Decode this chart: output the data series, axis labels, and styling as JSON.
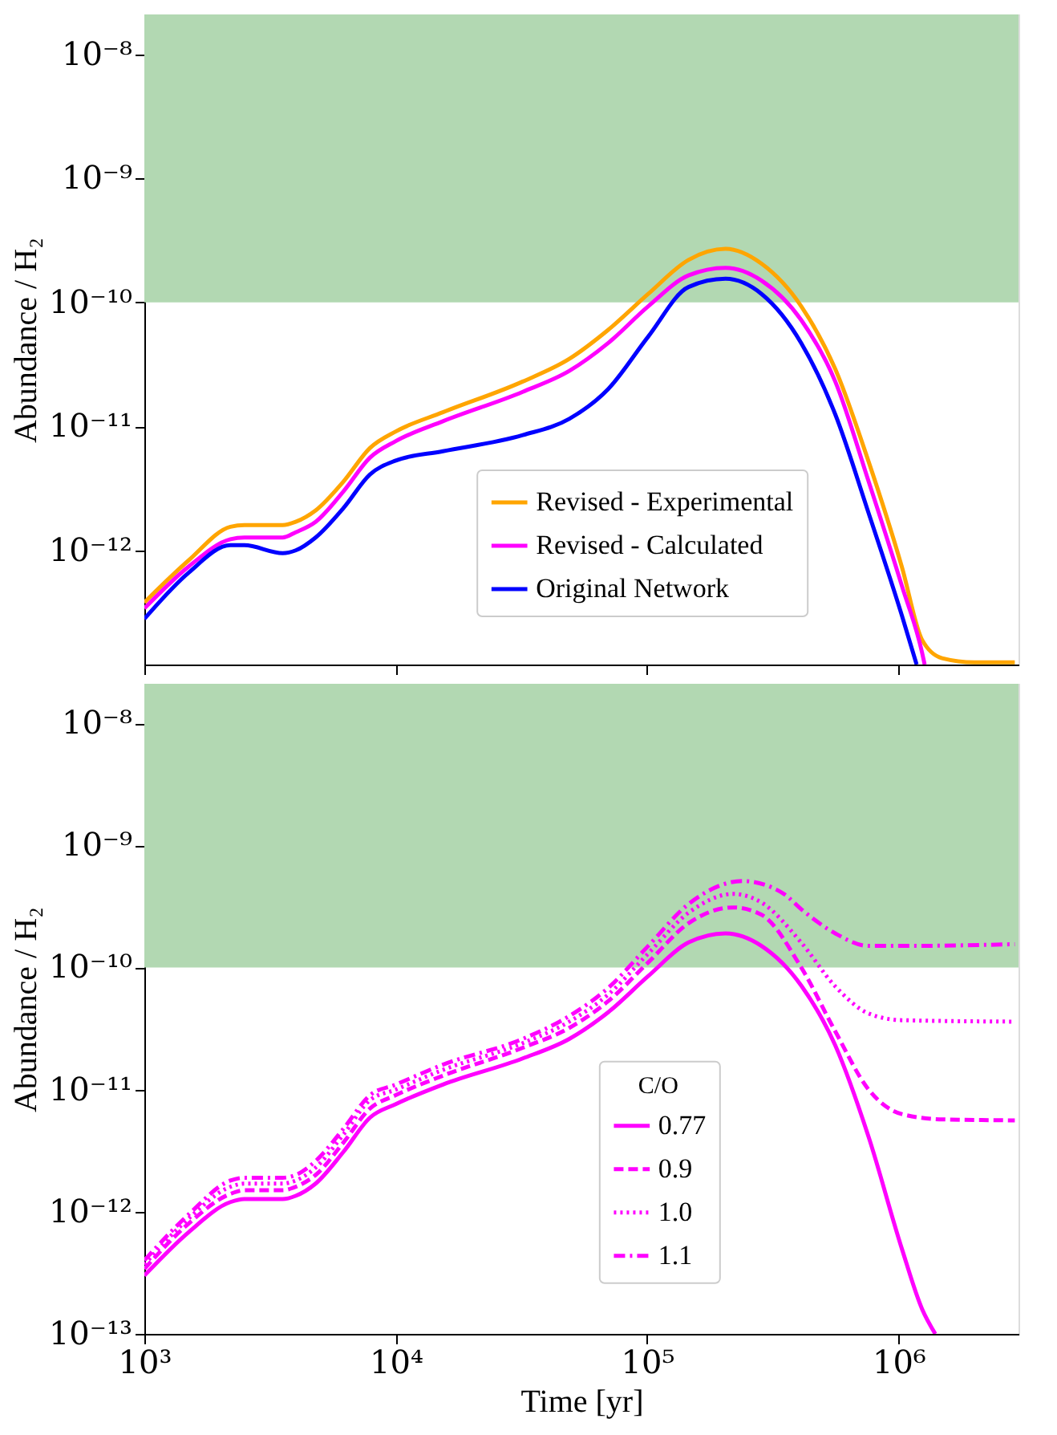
{
  "chart_data": [
    {
      "type": "line",
      "ylabel": "Abundance / H₂",
      "xlim": [
        1000,
        3000000
      ],
      "ylim": [
        1.2e-13,
        2.1e-08
      ],
      "log": "xy",
      "grid": false,
      "legend": "bottom right",
      "tick_labels": "y",
      "line_style": "solid",
      "marker": "none",
      "xticks": [
        {
          "value": 1000,
          "label": null
        },
        {
          "value": 10000,
          "label": null
        },
        {
          "value": 100000,
          "label": null
        },
        {
          "value": 1000000,
          "label": null
        }
      ],
      "yticks": [
        {
          "value": 1e-12,
          "label": "10⁻¹²"
        },
        {
          "value": 1e-11,
          "label": "10⁻¹¹"
        },
        {
          "value": 1e-10,
          "label": "10⁻¹⁰"
        },
        {
          "value": 1e-09,
          "label": "10⁻⁹"
        },
        {
          "value": 1e-08,
          "label": "10⁻⁸"
        }
      ],
      "bands": [
        {
          "axis": "y",
          "from": 1e-10,
          "to": 2.1e-08,
          "color": "#b2d8b2"
        }
      ],
      "series": [
        {
          "name": "Revised - Experimental",
          "color": "#ffa500",
          "x": [
            1000,
            1500,
            2200,
            2500,
            3550,
            4000,
            4800,
            6200,
            7900,
            10000,
            15400,
            32000,
            49000,
            70000,
            101000,
            146000,
            205000,
            285000,
            410000,
            560000,
            760000,
            1030000,
            1240000,
            1490000,
            2000000,
            2900000
          ],
          "values": [
            3.8e-13,
            8.3e-13,
            1.55e-12,
            1.6e-12,
            1.6e-12,
            1.7e-12,
            2.1e-12,
            3.6e-12,
            6.7e-12,
            9.1e-12,
            1.3e-11,
            2.3e-11,
            3.5e-11,
            6e-11,
            1.17e-10,
            2.2e-10,
            2.7e-10,
            2.05e-10,
            9.3e-11,
            2.9e-11,
            5.2e-12,
            7.4e-13,
            1.9e-13,
            1.35e-13,
            1.25e-13,
            1.25e-13
          ]
        },
        {
          "name": "Revised - Calculated",
          "color": "#ff00ff",
          "x": [
            1000,
            1500,
            2200,
            2500,
            3550,
            4000,
            4800,
            6200,
            7900,
            10000,
            15400,
            32000,
            49000,
            70000,
            101000,
            146000,
            205000,
            285000,
            410000,
            560000,
            760000,
            1030000,
            1240000,
            1270000
          ],
          "values": [
            3.4e-13,
            7.4e-13,
            1.23e-12,
            1.27e-12,
            1.27e-12,
            1.4e-12,
            1.7e-12,
            3e-12,
            5.6e-12,
            7.6e-12,
            1.1e-11,
            1.9e-11,
            2.8e-11,
            4.7e-11,
            9.3e-11,
            1.65e-10,
            1.9e-10,
            1.5e-10,
            7.2e-11,
            2.3e-11,
            3.6e-12,
            5.2e-13,
            1.5e-13,
            1.2e-13
          ]
        },
        {
          "name": "Original Network",
          "color": "#0000ff",
          "x": [
            1000,
            1500,
            2200,
            2500,
            3550,
            4000,
            4800,
            6200,
            7900,
            10000,
            15400,
            32000,
            49000,
            70000,
            101000,
            146000,
            205000,
            285000,
            410000,
            560000,
            760000,
            1030000,
            1180000
          ],
          "values": [
            2.8e-13,
            6.6e-13,
            1.1e-12,
            1.1e-12,
            9.5e-13,
            1e-12,
            1.27e-12,
            2.2e-12,
            4.1e-12,
            5.3e-12,
            6.3e-12,
            8.5e-12,
            1.15e-11,
            2e-11,
            5.3e-11,
            1.33e-10,
            1.55e-10,
            1.17e-10,
            4.7e-11,
            1.25e-11,
            2e-12,
            3e-13,
            1.2e-13
          ]
        }
      ]
    },
    {
      "type": "line",
      "ylabel": "Abundance / H₂",
      "xlabel": "Time [yr]",
      "legend_title": "C/O",
      "xlim": [
        1000,
        3000000
      ],
      "ylim": [
        1e-13,
        2.1e-08
      ],
      "log": "xy",
      "grid": false,
      "legend": "bottom",
      "marker": "none",
      "xticks": [
        {
          "value": 1000,
          "label": "10³"
        },
        {
          "value": 10000,
          "label": "10⁴"
        },
        {
          "value": 100000,
          "label": "10⁵"
        },
        {
          "value": 1000000,
          "label": "10⁶"
        }
      ],
      "yticks": [
        {
          "value": 1e-13,
          "label": "10⁻¹³"
        },
        {
          "value": 1e-12,
          "label": "10⁻¹²"
        },
        {
          "value": 1e-11,
          "label": "10⁻¹¹"
        },
        {
          "value": 1e-10,
          "label": "10⁻¹⁰"
        },
        {
          "value": 1e-09,
          "label": "10⁻⁹"
        },
        {
          "value": 1e-08,
          "label": "10⁻⁸"
        }
      ],
      "bands": [
        {
          "axis": "y",
          "from": 1e-10,
          "to": 2.1e-08,
          "color": "#b2d8b2"
        }
      ],
      "series": [
        {
          "name": "0.77",
          "color": "#ff00ff",
          "line_style": "solid",
          "x": [
            1000,
            1500,
            2200,
            2500,
            3550,
            4000,
            4800,
            6200,
            7900,
            10000,
            15400,
            32000,
            49000,
            70000,
            101000,
            146000,
            205000,
            285000,
            410000,
            560000,
            760000,
            1030000,
            1240000,
            1400000
          ],
          "values": [
            3e-13,
            6.8e-13,
            1.2e-12,
            1.27e-12,
            1.27e-12,
            1.35e-12,
            1.7e-12,
            3.1e-12,
            5.9e-12,
            7.6e-12,
            1.1e-11,
            1.8e-11,
            2.6e-11,
            4.3e-11,
            8.5e-11,
            1.6e-10,
            1.9e-10,
            1.5e-10,
            7.1e-11,
            2.3e-11,
            4.1e-12,
            5e-13,
            1.6e-13,
            1e-13
          ]
        },
        {
          "name": "0.9",
          "color": "#ff00ff",
          "line_style": "dashed",
          "x": [
            1000,
            1500,
            2200,
            2500,
            3550,
            4000,
            4800,
            6200,
            7900,
            10000,
            15400,
            32000,
            49000,
            70000,
            101000,
            146000,
            220000,
            285000,
            410000,
            560000,
            760000,
            1030000,
            1500000,
            2900000
          ],
          "values": [
            3.4e-13,
            8e-13,
            1.4e-12,
            1.5e-12,
            1.5e-12,
            1.6e-12,
            2e-12,
            3.7e-12,
            7e-12,
            9e-12,
            1.3e-11,
            2.2e-11,
            3.2e-11,
            5.3e-11,
            1.1e-10,
            2.3e-10,
            3.1e-10,
            2.7e-10,
            1e-10,
            3e-11,
            1e-11,
            6.3e-12,
            5.7e-12,
            5.6e-12
          ]
        },
        {
          "name": "1.0",
          "color": "#ff00ff",
          "line_style": "dotted",
          "x": [
            1000,
            1500,
            2200,
            2500,
            3550,
            4000,
            4800,
            6200,
            7900,
            10000,
            15400,
            32000,
            49000,
            70000,
            101000,
            146000,
            220000,
            285000,
            410000,
            560000,
            760000,
            1030000,
            2900000
          ],
          "values": [
            3.7e-13,
            8.8e-13,
            1.6e-12,
            1.7e-12,
            1.7e-12,
            1.8e-12,
            2.3e-12,
            4.3e-12,
            8.2e-12,
            1e-11,
            1.45e-11,
            2.4e-11,
            3.6e-11,
            6e-11,
            1.3e-10,
            2.8e-10,
            4e-10,
            3.4e-10,
            1.6e-10,
            7e-11,
            4.2e-11,
            3.7e-11,
            3.6e-11
          ]
        },
        {
          "name": "1.1",
          "color": "#ff00ff",
          "line_style": "dashdot",
          "x": [
            1000,
            1500,
            2200,
            2500,
            3550,
            4000,
            4800,
            6200,
            7900,
            10000,
            15400,
            32000,
            49000,
            70000,
            101000,
            146000,
            240000,
            350000,
            410000,
            560000,
            760000,
            1030000,
            2900000
          ],
          "values": [
            4e-13,
            9.5e-13,
            1.8e-12,
            1.9e-12,
            1.9e-12,
            2e-12,
            2.6e-12,
            4.8e-12,
            9e-12,
            1.1e-11,
            1.6e-11,
            2.6e-11,
            4e-11,
            6.8e-11,
            1.5e-10,
            3.3e-10,
            5.1e-10,
            4e-10,
            3e-10,
            1.9e-10,
            1.5e-10,
            1.5e-10,
            1.55e-10
          ]
        }
      ]
    }
  ]
}
